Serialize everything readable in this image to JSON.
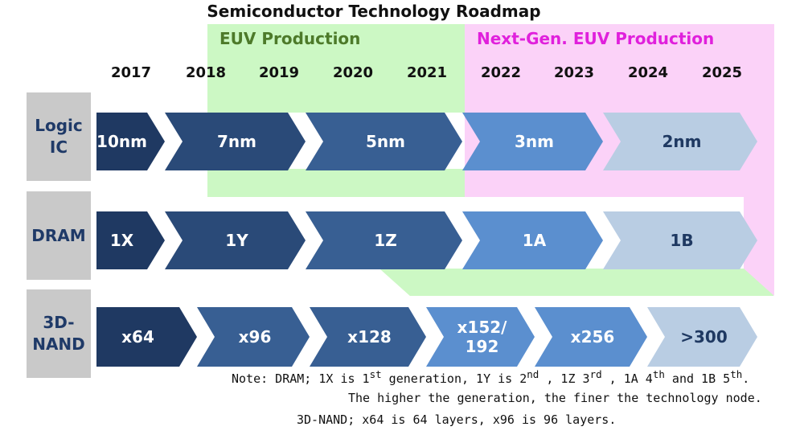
{
  "title": "Semiconductor Technology Roadmap",
  "colors": {
    "euv_band": "#ccf8c4",
    "next_gen_band": "#fbd2f8",
    "euv_text": "#4d7a2a",
    "next_gen_text": "#e020dc",
    "row_label_bg": "#c9c9c9",
    "row_label_text": "#1f3a68",
    "gen_colors": [
      "#1f3962",
      "#2a4a78",
      "#385f93",
      "#5b8fcf",
      "#b9cde3"
    ]
  },
  "bands": {
    "euv_label": "EUV Production",
    "next_gen_label": "Next-Gen. EUV Production"
  },
  "years": [
    "2017",
    "2018",
    "2019",
    "2020",
    "2021",
    "2022",
    "2023",
    "2024",
    "2025"
  ],
  "rows": [
    {
      "label": "Logic\nIC",
      "nodes": [
        "10nm",
        "7nm",
        "5nm",
        "3nm",
        "2nm"
      ]
    },
    {
      "label": "DRAM",
      "nodes": [
        "1X",
        "1Y",
        "1Z",
        "1A",
        "1B"
      ]
    },
    {
      "label": "3D-\nNAND",
      "nodes": [
        "x64",
        "x96",
        "x128",
        "x152/\n192",
        "x256",
        ">300"
      ]
    }
  ],
  "notes": {
    "line1_a": "Note: DRAM; 1X is 1",
    "line1_sup1": "st",
    "line1_b": " generation, 1Y is 2",
    "line1_sup2": "nd",
    "line1_c": " , 1Z 3",
    "line1_sup3": "rd",
    "line1_d": " , 1A 4",
    "line1_sup4": "th",
    "line1_e": " and 1B 5",
    "line1_sup5": "th",
    "line1_f": ".",
    "line2": "The higher the generation, the finer the technology node.",
    "line3": "3D-NAND; x64 is 64 layers, x96 is 96 layers."
  }
}
